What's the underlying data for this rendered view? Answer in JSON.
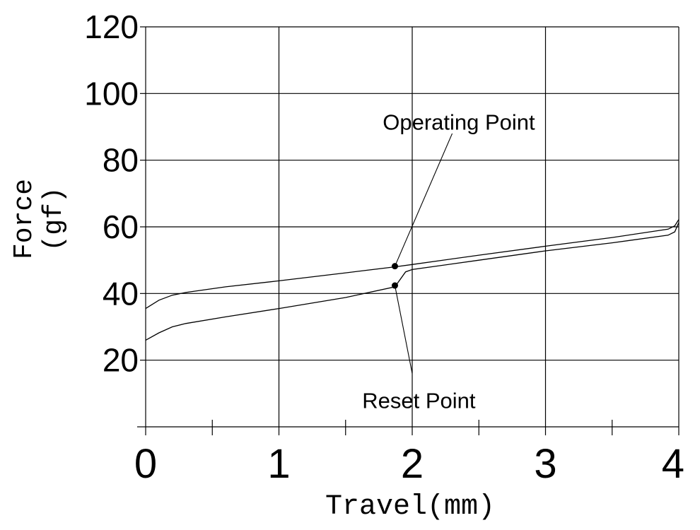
{
  "chart_data": {
    "type": "line",
    "title": "",
    "xlabel": "Travel(mm)",
    "ylabel_lines": [
      "Force",
      "(gf)"
    ],
    "xlim": [
      0,
      4
    ],
    "ylim": [
      0,
      120
    ],
    "x_ticks": [
      0,
      1,
      2,
      3,
      4
    ],
    "x_tick_labels": [
      "0",
      "1",
      "2",
      "3",
      "4"
    ],
    "y_ticks": [
      20,
      40,
      60,
      80,
      100,
      120
    ],
    "y_tick_labels": [
      "20",
      "40",
      "60",
      "80",
      "100",
      "120"
    ],
    "x_minor_ticks": [
      0.5,
      1.5,
      2.5,
      3.5
    ],
    "grid": true,
    "legend": "none",
    "series": [
      {
        "points": [
          [
            0,
            35.5
          ],
          [
            0.1,
            38
          ],
          [
            0.2,
            39.5
          ],
          [
            0.3,
            40.3
          ],
          [
            0.6,
            42
          ],
          [
            1.0,
            43.8
          ],
          [
            1.5,
            46.2
          ],
          [
            1.87,
            48
          ],
          [
            2.0,
            48.7
          ],
          [
            2.5,
            51.5
          ],
          [
            3.0,
            54.2
          ],
          [
            3.5,
            56.8
          ],
          [
            3.92,
            59.3
          ],
          [
            3.97,
            60.3
          ],
          [
            4.0,
            62.2
          ]
        ]
      },
      {
        "points": [
          [
            0,
            26
          ],
          [
            0.1,
            28.2
          ],
          [
            0.2,
            30
          ],
          [
            0.3,
            31
          ],
          [
            0.6,
            33
          ],
          [
            1.0,
            35.5
          ],
          [
            1.5,
            38.8
          ],
          [
            1.87,
            42
          ],
          [
            1.95,
            46.5
          ],
          [
            2.0,
            47.2
          ],
          [
            2.5,
            50
          ],
          [
            3.0,
            52.8
          ],
          [
            3.5,
            55.2
          ],
          [
            3.92,
            57.5
          ],
          [
            3.97,
            58.5
          ],
          [
            4.0,
            61.3
          ]
        ]
      }
    ],
    "annotations": [
      {
        "text": "Operating Point",
        "point": [
          1.87,
          48.2
        ],
        "label_anchor": [
          2.35,
          91.5
        ],
        "leader_end": [
          2.3,
          88
        ]
      },
      {
        "text": "Reset Point",
        "point": [
          1.87,
          42.4
        ],
        "label_anchor": [
          2.05,
          8
        ],
        "leader_end": [
          2.0,
          16
        ]
      }
    ],
    "colors": {
      "line": "#000000",
      "grid": "#000000",
      "background": "#ffffff"
    }
  }
}
